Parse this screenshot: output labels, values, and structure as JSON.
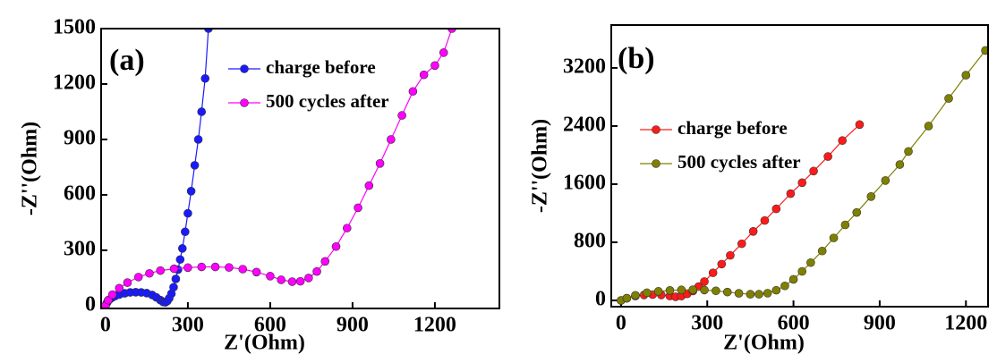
{
  "chart_data": [
    {
      "type": "line",
      "annotation": "(a)",
      "x_label": "Z'(Ohm)",
      "y_label": "-Z''(Ohm)",
      "xlim": [
        -16,
        1435
      ],
      "ylim": [
        -15,
        1500
      ],
      "xticks": [
        0,
        300,
        600,
        900,
        1200
      ],
      "yticks": [
        0,
        300,
        600,
        900,
        1200,
        1500
      ],
      "legend": "upper center",
      "series": [
        {
          "name": "charge before",
          "color": "#1a1aff",
          "x": [
            0,
            5,
            12,
            22,
            35,
            50,
            70,
            90,
            110,
            130,
            150,
            170,
            185,
            200,
            210,
            218,
            225,
            232,
            240,
            248,
            256,
            264,
            272,
            280,
            290,
            300,
            312,
            325,
            338,
            350,
            363,
            375
          ],
          "values": [
            0,
            15,
            30,
            42,
            52,
            60,
            67,
            72,
            73,
            72,
            68,
            58,
            45,
            30,
            20,
            18,
            25,
            40,
            65,
            100,
            145,
            195,
            250,
            310,
            400,
            500,
            620,
            760,
            900,
            1050,
            1230,
            1500
          ]
        },
        {
          "name": "500 cycles after",
          "color": "#ff00ff",
          "x": [
            0,
            10,
            25,
            50,
            80,
            120,
            160,
            200,
            250,
            300,
            350,
            400,
            450,
            500,
            550,
            600,
            640,
            680,
            710,
            740,
            770,
            800,
            840,
            880,
            920,
            960,
            1000,
            1040,
            1080,
            1120,
            1160,
            1200,
            1232,
            1262
          ],
          "values": [
            0,
            30,
            60,
            95,
            125,
            155,
            175,
            190,
            200,
            206,
            210,
            210,
            207,
            198,
            182,
            160,
            140,
            130,
            132,
            150,
            185,
            240,
            320,
            420,
            530,
            650,
            770,
            900,
            1030,
            1160,
            1250,
            1300,
            1370,
            1500
          ]
        }
      ]
    },
    {
      "type": "line",
      "annotation": "(b)",
      "x_label": "Z'(Ohm)",
      "y_label": "-Z''(Ohm)",
      "xlim": [
        -34,
        1277
      ],
      "ylim": [
        -86,
        3790
      ],
      "xticks": [
        0,
        300,
        600,
        900,
        1200
      ],
      "yticks": [
        0,
        800,
        1600,
        2400,
        3200
      ],
      "legend": "upper left",
      "series": [
        {
          "name": "charge before",
          "color": "#ff1a1a",
          "x": [
            0,
            20,
            50,
            80,
            110,
            140,
            170,
            190,
            210,
            230,
            250,
            270,
            290,
            320,
            350,
            380,
            420,
            460,
            500,
            540,
            590,
            630,
            670,
            720,
            770,
            830
          ],
          "values": [
            0,
            30,
            60,
            75,
            80,
            75,
            60,
            50,
            60,
            90,
            130,
            190,
            260,
            380,
            500,
            620,
            780,
            950,
            1100,
            1260,
            1470,
            1620,
            1780,
            1980,
            2200,
            2420
          ]
        },
        {
          "name": "500 cycles after",
          "color": "#808000",
          "x": [
            0,
            20,
            50,
            90,
            130,
            170,
            210,
            250,
            290,
            330,
            370,
            410,
            450,
            480,
            510,
            540,
            570,
            600,
            630,
            660,
            700,
            740,
            780,
            820,
            870,
            920,
            970,
            1000,
            1070,
            1140,
            1200,
            1268
          ],
          "values": [
            0,
            30,
            70,
            105,
            125,
            138,
            145,
            147,
            143,
            132,
            115,
            98,
            85,
            85,
            100,
            140,
            200,
            290,
            400,
            520,
            680,
            860,
            1040,
            1210,
            1430,
            1650,
            1870,
            2050,
            2400,
            2780,
            3100,
            3440
          ]
        }
      ]
    }
  ]
}
